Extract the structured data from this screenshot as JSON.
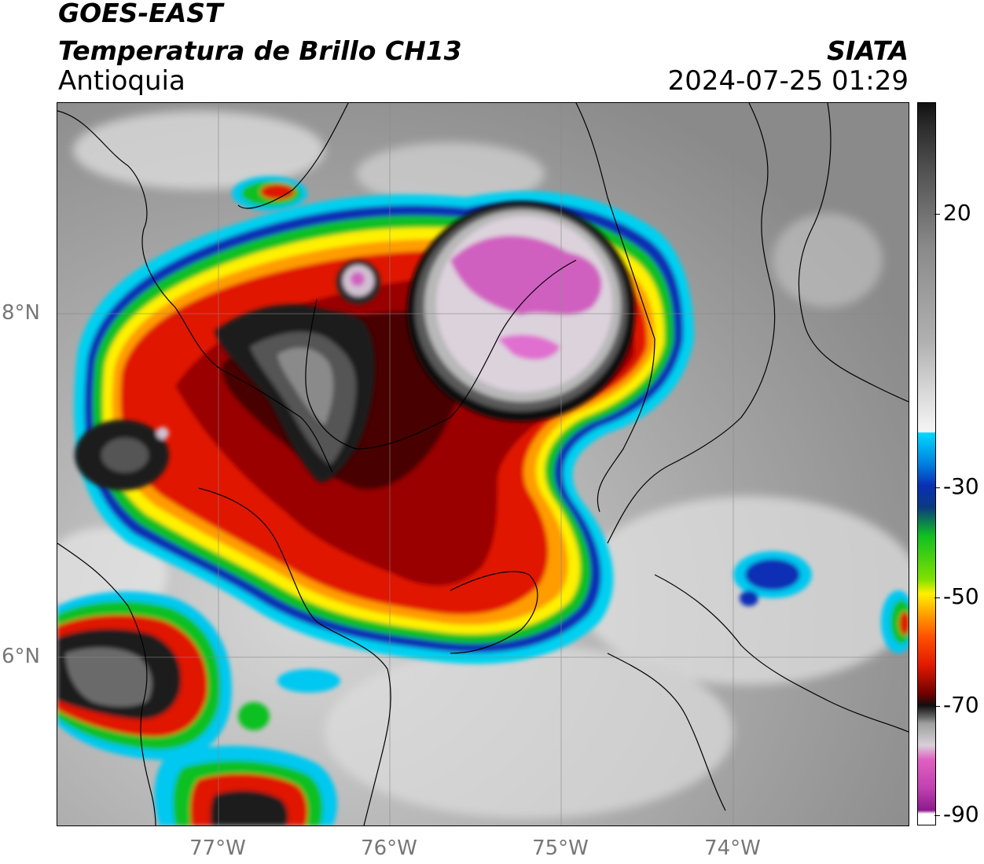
{
  "header": {
    "satellite": "GOES-EAST",
    "product": "Temperatura de Brillo CH13",
    "region": "Antioquia",
    "organization": "SIATA",
    "datetime": "2024-07-25 01:29"
  },
  "map": {
    "latitude_labels": [
      "8°N",
      "6°N"
    ],
    "longitude_labels": [
      "77°W",
      "76°W",
      "75°W",
      "74°W"
    ]
  },
  "colorbar": {
    "labels": [
      "20",
      "-30",
      "-50",
      "-70",
      "-90"
    ],
    "colors": {
      "warm_gray": "#8a8a8a",
      "white": "#f2f2f2",
      "cyan": "#00d8ff",
      "blue": "#0a2fb5",
      "green": "#10c020",
      "yellow": "#fff000",
      "orange": "#ff9c00",
      "red": "#e01800",
      "dark_red": "#6a0000",
      "black": "#101010",
      "light_gray": "#d8d0d8",
      "pink": "#e060c0",
      "purple": "#8c1a8c"
    }
  }
}
